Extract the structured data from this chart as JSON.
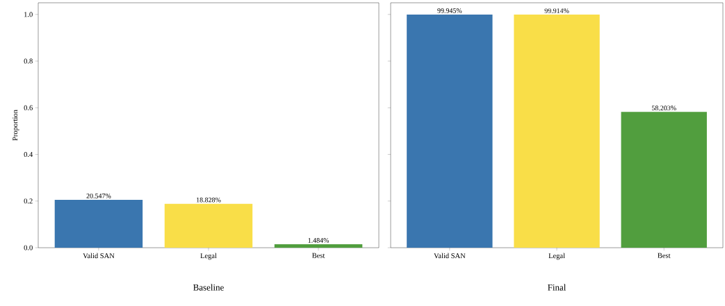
{
  "chart_data": [
    {
      "type": "bar",
      "title": "Baseline",
      "ylabel": "Proportion",
      "categories": [
        "Valid SAN",
        "Legal",
        "Best"
      ],
      "values": [
        0.20547,
        0.18828,
        0.01484
      ],
      "colors": [
        "#3a76af",
        "#f9de48",
        "#519e3e"
      ],
      "value_labels": [
        "20.547%",
        "18.828%",
        "1.484%"
      ],
      "ylim": [
        0,
        1.05
      ],
      "yticks": [
        {
          "value": 0,
          "label": "0.0"
        },
        {
          "value": 0.2,
          "label": "0.2"
        },
        {
          "value": 0.4,
          "label": "0.4"
        },
        {
          "value": 0.6,
          "label": "0.6"
        },
        {
          "value": 0.8,
          "label": "0.8"
        },
        {
          "value": 1,
          "label": "1.0"
        }
      ]
    },
    {
      "type": "bar",
      "title": "Final",
      "categories": [
        "Valid SAN",
        "Legal",
        "Best"
      ],
      "values": [
        0.99945,
        0.99914,
        0.58203
      ],
      "colors": [
        "#3a76af",
        "#f9de48",
        "#519e3e"
      ],
      "value_labels": [
        "99.945%",
        "99.914%",
        "58.203%"
      ],
      "ylim": [
        0,
        1.05
      ],
      "yticks": [
        0,
        0.2,
        0.4,
        0.6,
        0.8,
        1
      ],
      "tick_labels": "x"
    }
  ]
}
